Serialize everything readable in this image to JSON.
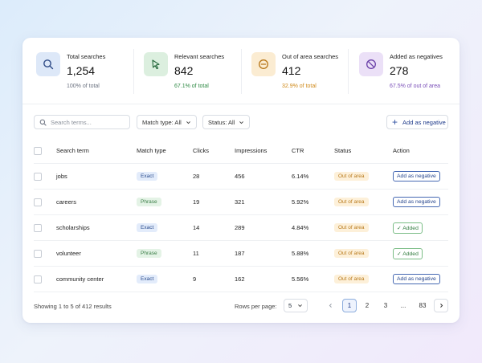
{
  "stats": [
    {
      "label": "Total searches",
      "value": "1,254",
      "sub": "100% of total",
      "color": "#6b7280",
      "icon": "search-icon",
      "bg": "#dde8f8",
      "stroke": "#2e4a86"
    },
    {
      "label": "Relevant searches",
      "value": "842",
      "sub": "67.1% of total",
      "color": "#2f8a45",
      "icon": "cursor-icon",
      "bg": "#dcefdf",
      "stroke": "#23663a"
    },
    {
      "label": "Out of area searches",
      "value": "412",
      "sub": "32.9% of total",
      "color": "#d08a1a",
      "icon": "minus-circle-icon",
      "bg": "#fbecd2",
      "stroke": "#b87618"
    },
    {
      "label": "Added as negatives",
      "value": "278",
      "sub": "67.5% of out of area",
      "color": "#7a4fb8",
      "icon": "block-icon",
      "bg": "#ebe0f7",
      "stroke": "#6a3fa8"
    }
  ],
  "toolbar": {
    "search_placeholder": "Search terms...",
    "match_type": "Match type: All",
    "status": "Status: All",
    "add_negative": "Add as negative"
  },
  "table": {
    "headers": [
      "Search term",
      "Match type",
      "Clicks",
      "Impressions",
      "CTR",
      "Status",
      "Action"
    ],
    "rows": [
      {
        "term": "jobs",
        "match": "Exact",
        "clicks": "28",
        "impressions": "456",
        "ctr": "6.14%",
        "status": "Out of area",
        "action": "Add as negative",
        "added": false
      },
      {
        "term": "careers",
        "match": "Phrase",
        "clicks": "19",
        "impressions": "321",
        "ctr": "5.92%",
        "status": "Out of area",
        "action": "Add as negative",
        "added": false
      },
      {
        "term": "scholarships",
        "match": "Exact",
        "clicks": "14",
        "impressions": "289",
        "ctr": "4.84%",
        "status": "Out of area",
        "action": "Added",
        "added": true
      },
      {
        "term": "volunteer",
        "match": "Phrase",
        "clicks": "11",
        "impressions": "187",
        "ctr": "5.88%",
        "status": "Out of area",
        "action": "Added",
        "added": true
      },
      {
        "term": "community center",
        "match": "Exact",
        "clicks": "9",
        "impressions": "162",
        "ctr": "5.56%",
        "status": "Out of area",
        "action": "Add as negative",
        "added": false
      }
    ]
  },
  "footer": {
    "showing": "Showing 1 to 5 of 412 results",
    "rows_label": "Rows per page:",
    "rows_value": "5",
    "pages": [
      "1",
      "2",
      "3",
      "...",
      "83"
    ]
  }
}
